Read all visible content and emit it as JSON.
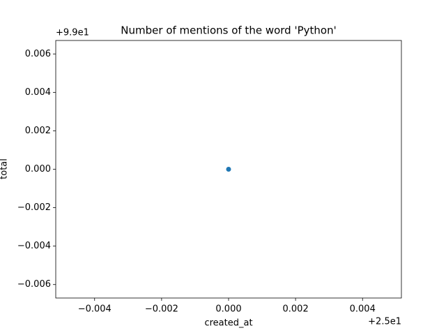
{
  "chart_data": {
    "type": "scatter",
    "title": "Number of mentions of the word 'Python'",
    "x_label": "created_at",
    "y_label": "total",
    "x_offset": "+2.5e1",
    "y_offset": "+9.9e1",
    "x": [
      0
    ],
    "values": [
      0
    ],
    "color": "#1f77b4",
    "xlim": [
      -0.00516,
      0.00516
    ],
    "ylim": [
      -0.0067,
      0.0067
    ],
    "xticks": [
      {
        "value": -0.004,
        "label": "−0.004"
      },
      {
        "value": -0.002,
        "label": "−0.002"
      },
      {
        "value": 0,
        "label": "0.000"
      },
      0.002,
      0.004
    ],
    "yticks": [
      {
        "value": -0.006,
        "label": "−0.006"
      },
      {
        "value": -0.004,
        "label": "−0.004"
      },
      {
        "value": -0.002,
        "label": "−0.002"
      },
      {
        "value": 0,
        "label": "0.000"
      },
      0.002,
      0.004,
      0.006
    ],
    "grid": false
  }
}
